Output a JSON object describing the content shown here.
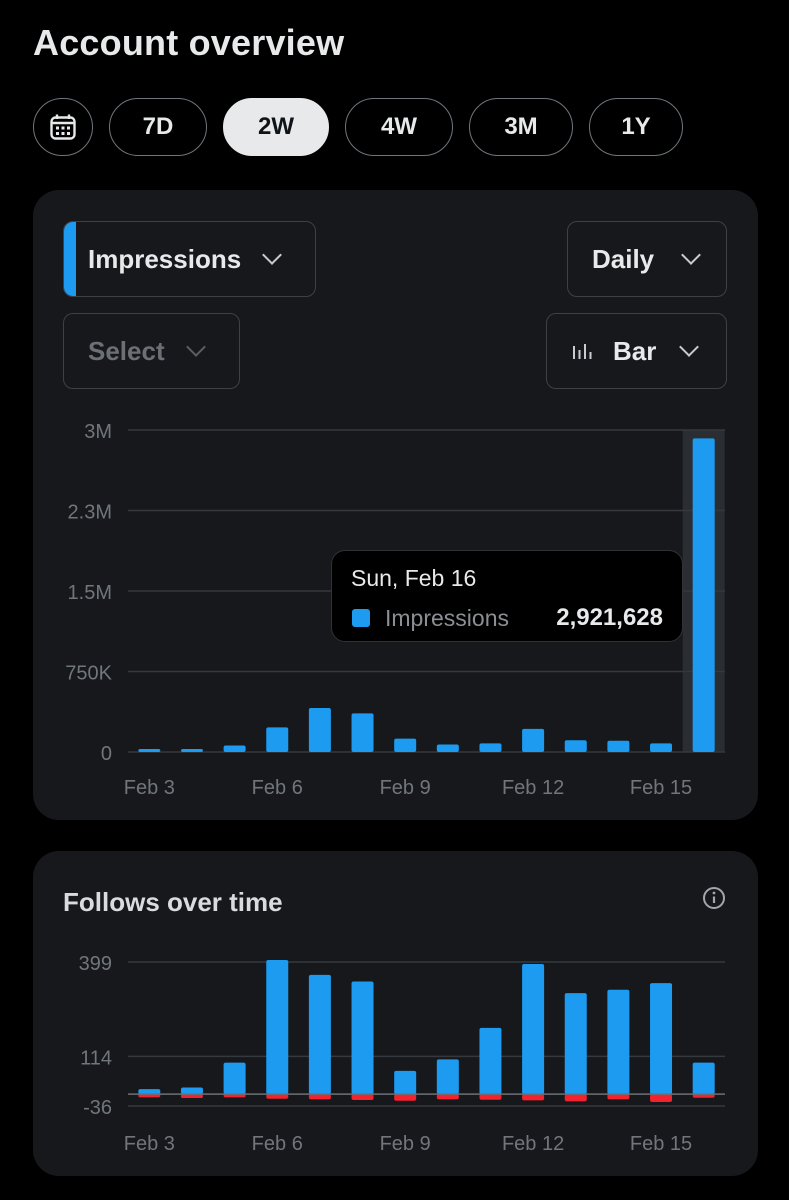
{
  "page": {
    "title": "Account overview"
  },
  "range": {
    "calendar_icon": "calendar-icon",
    "options": [
      "7D",
      "2W",
      "4W",
      "3M",
      "1Y"
    ],
    "selected": "2W"
  },
  "impressions_card": {
    "metric_label": "Impressions",
    "metric_color": "#1d9bf0",
    "interval_label": "Daily",
    "compare_placeholder": "Select",
    "chart_type_label": "Bar",
    "chart_type_icon": "bar-chart-icon",
    "tooltip": {
      "date": "Sun, Feb 16",
      "series": "Impressions",
      "value": "2,921,628"
    }
  },
  "follows_card": {
    "title": "Follows over time",
    "info_icon": "info-icon"
  },
  "colors": {
    "positive": "#1d9bf0",
    "negative": "#f4212e",
    "accent": "#1d9bf0"
  },
  "chart_data": [
    {
      "type": "bar",
      "title": "",
      "categories": [
        "Feb 3",
        "Feb 4",
        "Feb 5",
        "Feb 6",
        "Feb 7",
        "Feb 8",
        "Feb 9",
        "Feb 10",
        "Feb 11",
        "Feb 12",
        "Feb 13",
        "Feb 14",
        "Feb 15",
        "Feb 16"
      ],
      "x_tick_labels": [
        "Feb 3",
        "Feb 6",
        "Feb 9",
        "Feb 12",
        "Feb 15"
      ],
      "y_tick_labels": [
        "0",
        "750K",
        "1.5M",
        "2.3M",
        "3M"
      ],
      "y_ticks": [
        0,
        750000,
        1500000,
        2250000,
        3000000
      ],
      "ylim": [
        0,
        3000000
      ],
      "series": [
        {
          "name": "Impressions",
          "values": [
            25000,
            20000,
            60000,
            230000,
            410000,
            360000,
            125000,
            70000,
            80000,
            215000,
            110000,
            105000,
            80000,
            2921628
          ]
        }
      ],
      "highlighted_category": "Feb 16",
      "grid": true
    },
    {
      "type": "bar",
      "title": "Follows over time",
      "categories": [
        "Feb 3",
        "Feb 4",
        "Feb 5",
        "Feb 6",
        "Feb 7",
        "Feb 8",
        "Feb 9",
        "Feb 10",
        "Feb 11",
        "Feb 12",
        "Feb 13",
        "Feb 14",
        "Feb 15",
        "Feb 16"
      ],
      "x_tick_labels": [
        "Feb 3",
        "Feb 6",
        "Feb 9",
        "Feb 12",
        "Feb 15"
      ],
      "y_tick_labels": [
        "399",
        "114",
        "-36"
      ],
      "y_ticks": [
        399,
        114,
        -36
      ],
      "ylim": [
        -36,
        399
      ],
      "series": [
        {
          "values": [
            15,
            20,
            95,
            405,
            360,
            340,
            70,
            105,
            200,
            393,
            305,
            315,
            335,
            95
          ]
        },
        {
          "values": [
            -10,
            -12,
            -10,
            -14,
            -16,
            -18,
            -20,
            -16,
            -17,
            -19,
            -22,
            -16,
            -24,
            -11
          ]
        }
      ],
      "grid": true
    }
  ]
}
